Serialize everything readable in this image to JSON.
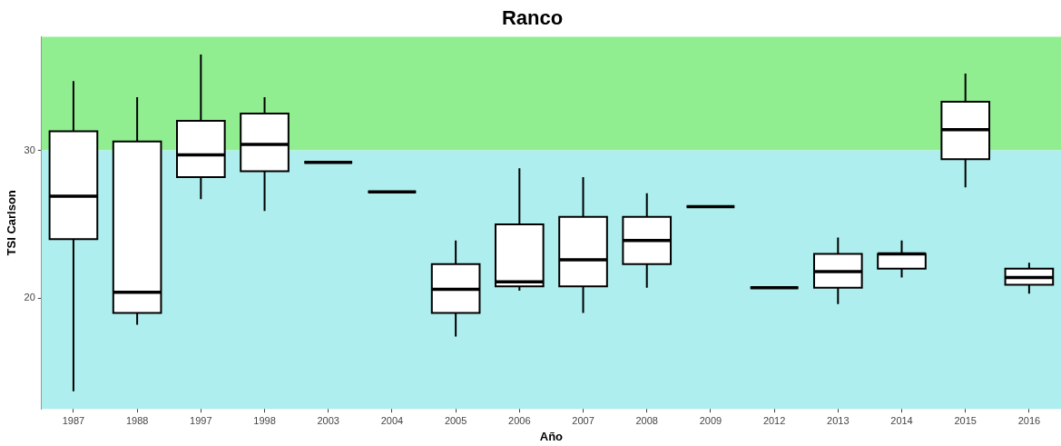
{
  "chart_data": {
    "type": "box",
    "title": "Ranco",
    "xlabel": "Año",
    "ylabel": "TSI Carlson",
    "categories": [
      "1987",
      "1988",
      "1997",
      "1998",
      "2003",
      "2004",
      "2005",
      "2006",
      "2007",
      "2008",
      "2009",
      "2012",
      "2013",
      "2014",
      "2015",
      "2016"
    ],
    "boxes": [
      {
        "low": 13.7,
        "q1": 24.0,
        "median": 26.9,
        "q3": 31.3,
        "high": 34.7
      },
      {
        "low": 18.2,
        "q1": 19.0,
        "median": 20.4,
        "q3": 30.6,
        "high": 33.6
      },
      {
        "low": 26.7,
        "q1": 28.2,
        "median": 29.7,
        "q3": 32.0,
        "high": 36.5
      },
      {
        "low": 25.9,
        "q1": 28.6,
        "median": 30.4,
        "q3": 32.5,
        "high": 33.6
      },
      {
        "low": 29.2,
        "q1": 29.2,
        "median": 29.2,
        "q3": 29.2,
        "high": 29.2
      },
      {
        "low": 27.2,
        "q1": 27.2,
        "median": 27.2,
        "q3": 27.2,
        "high": 27.2
      },
      {
        "low": 17.4,
        "q1": 19.0,
        "median": 20.6,
        "q3": 22.3,
        "high": 23.9
      },
      {
        "low": 20.5,
        "q1": 20.8,
        "median": 21.1,
        "q3": 25.0,
        "high": 28.8
      },
      {
        "low": 19.0,
        "q1": 20.8,
        "median": 22.6,
        "q3": 25.5,
        "high": 28.2
      },
      {
        "low": 20.7,
        "q1": 22.3,
        "median": 23.9,
        "q3": 25.5,
        "high": 27.1
      },
      {
        "low": 26.2,
        "q1": 26.2,
        "median": 26.2,
        "q3": 26.2,
        "high": 26.2
      },
      {
        "low": 20.7,
        "q1": 20.7,
        "median": 20.7,
        "q3": 20.7,
        "high": 20.7
      },
      {
        "low": 19.6,
        "q1": 20.7,
        "median": 21.8,
        "q3": 23.0,
        "high": 24.1
      },
      {
        "low": 21.4,
        "q1": 22.0,
        "median": 23.0,
        "q3": 23.0,
        "high": 23.9
      },
      {
        "low": 27.5,
        "q1": 29.4,
        "median": 31.4,
        "q3": 33.3,
        "high": 35.2
      },
      {
        "low": 20.3,
        "q1": 20.9,
        "median": 21.4,
        "q3": 22.0,
        "high": 22.4
      }
    ],
    "ylim": [
      12.5,
      37.7
    ],
    "yticks": [
      20,
      30
    ],
    "bands": [
      {
        "axis": "y",
        "from": 30,
        "to": 37.7,
        "color": "#90ee90"
      },
      {
        "axis": "y",
        "from": 12.5,
        "to": 30,
        "color": "#afeeee"
      }
    ]
  }
}
